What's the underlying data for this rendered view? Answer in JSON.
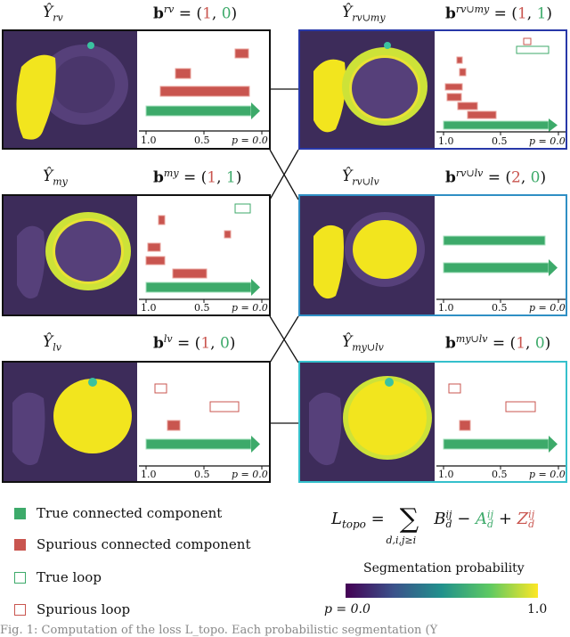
{
  "panels": [
    {
      "id": "rv",
      "title": "Ŷ",
      "title_sub": "rv",
      "vec_sup": "rv",
      "vec": [
        "1",
        "0"
      ],
      "frame": "#111111"
    },
    {
      "id": "rv_my",
      "title": "Ŷ",
      "title_sub": "rv∪my",
      "vec_sup": "rv∪my",
      "vec": [
        "1",
        "1"
      ],
      "frame": "#2838a8"
    },
    {
      "id": "my",
      "title": "Ŷ",
      "title_sub": "my",
      "vec_sup": "my",
      "vec": [
        "1",
        "1"
      ],
      "frame": "#111111"
    },
    {
      "id": "rv_lv",
      "title": "Ŷ",
      "title_sub": "rv∪lv",
      "vec_sup": "rv∪lv",
      "vec": [
        "2",
        "0"
      ],
      "frame": "#2f8fc4"
    },
    {
      "id": "lv",
      "title": "Ŷ",
      "title_sub": "lv",
      "vec_sup": "lv",
      "vec": [
        "1",
        "0"
      ],
      "frame": "#111111"
    },
    {
      "id": "my_lv",
      "title": "Ŷ",
      "title_sub": "my∪lv",
      "vec_sup": "my∪lv",
      "vec": [
        "1",
        "0"
      ],
      "frame": "#35c0cc"
    }
  ],
  "barcode_ticks": {
    "left": "1.0",
    "mid": "0.5",
    "right": "p = 0.0"
  },
  "legend": [
    {
      "label": "True connected component",
      "kind": "true-component",
      "color": "#3daa6a"
    },
    {
      "label": "Spurious connected component",
      "kind": "spurious-component",
      "color": "#c9554f"
    },
    {
      "label": "True loop",
      "kind": "true-loop",
      "color": "#3daa6a"
    },
    {
      "label": "Spurious loop",
      "kind": "spurious-loop",
      "color": "#c9554f"
    }
  ],
  "formula": {
    "lhs": "L",
    "lhs_sub": "topo",
    "eq": "=",
    "sum": "∑",
    "sum_sub": "d,i,j≥i",
    "B": "B",
    "A": "A",
    "Z": "Z",
    "sup": "ij",
    "sub": "d",
    "minus": "−",
    "plus": "+"
  },
  "colorbar": {
    "title": "Segmentation probability",
    "left": "p = 0.0",
    "right": "1.0"
  },
  "caption": "Fig. 1: Computation of the loss L_topo. Each probabilistic segmentation (Ŷ"
}
